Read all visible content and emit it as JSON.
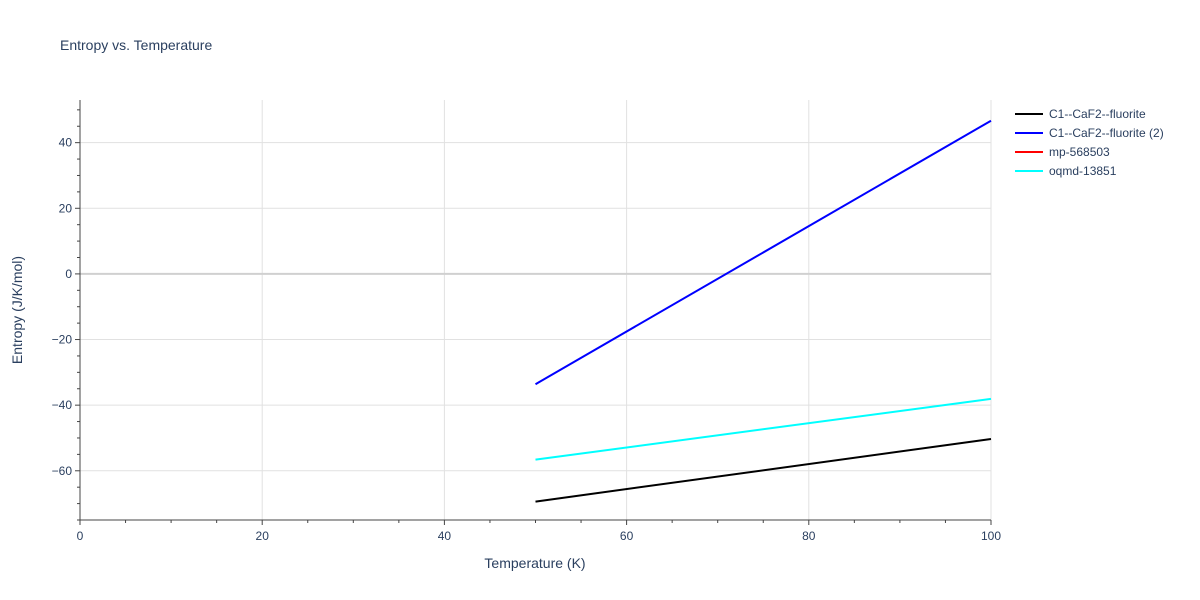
{
  "chart_data": {
    "type": "line",
    "title": "Entropy vs. Temperature",
    "xlabel": "Temperature (K)",
    "ylabel": "Entropy (J/K/mol)",
    "xlim": [
      0,
      100
    ],
    "ylim": [
      -75,
      53
    ],
    "xticks": [
      0,
      20,
      40,
      60,
      80,
      100
    ],
    "yticks": [
      -60,
      -40,
      -20,
      0,
      20,
      40
    ],
    "grid": true,
    "legend_position": "top-right",
    "series": [
      {
        "name": "C1--CaF2--fluorite",
        "color": "#000000",
        "x": [
          50,
          100
        ],
        "y": [
          -69.4,
          -50.3
        ]
      },
      {
        "name": "C1--CaF2--fluorite (2)",
        "color": "#0000ff",
        "x": [
          50,
          100
        ],
        "y": [
          -33.6,
          46.7
        ]
      },
      {
        "name": "mp-568503",
        "color": "#ff0000",
        "x": [],
        "y": []
      },
      {
        "name": "oqmd-13851",
        "color": "#00ffff",
        "x": [
          50,
          100
        ],
        "y": [
          -56.6,
          -38.1
        ]
      }
    ]
  }
}
